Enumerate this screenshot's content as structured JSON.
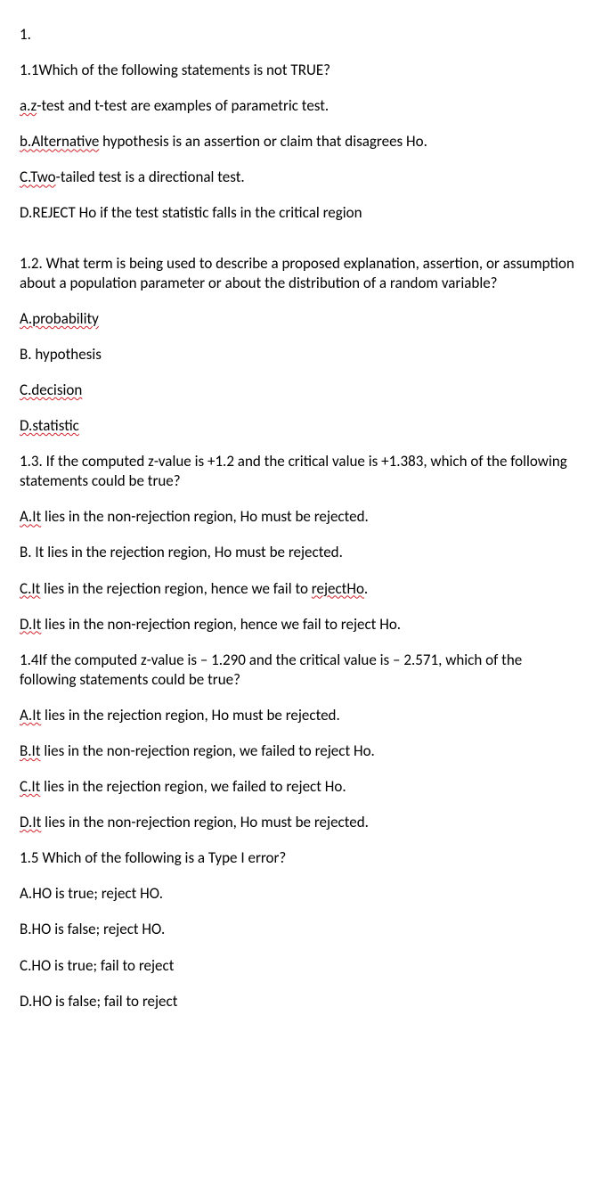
{
  "doc": {
    "font_family": "Calibri",
    "font_size_pt": 12,
    "text_color": "#000000",
    "background": "#ffffff",
    "spell_underline_color": "#d1232a",
    "heading": "1.",
    "q1": {
      "stem_a": "1.1Which of the following statements is not TRUE?",
      "a_pre": "a.z",
      "a_rest": "-test and t-test are examples of parametric test.",
      "b_pre": "b.Alternative",
      "b_rest": " hypothesis is an assertion or claim that disagrees Ho.",
      "c_pre": "C.Two",
      "c_rest": "-tailed test is a directional test.",
      "d": "D.REJECT Ho if the test statistic falls in the critical region"
    },
    "q2": {
      "stem": "1.2. What term is being used to describe a proposed explanation, assertion, or assumption about a population parameter or about the distribution of a random variable?",
      "a": "A.probability",
      "b": "B. hypothesis",
      "c": "C.decision",
      "d": "D.statistic"
    },
    "q3": {
      "stem": "1.3. If the computed z-value is +1.2 and the critical value is +1.383, which of the following statements could be true?",
      "a_pre": "A.It",
      "a_rest": " lies in the non-rejection region, Ho must be rejected.",
      "b": "B. It lies in the rejection region, Ho must be rejected.",
      "c_pre": "C.It",
      "c_rest_a": " lies in the rejection region, hence we fail to ",
      "c_mid": "rejectHo",
      "c_rest_b": ".",
      "d_pre": "D.It",
      "d_rest": " lies in the non-rejection region, hence we fail to reject Ho."
    },
    "q4": {
      "stem": "1.4If the computed z-value is – 1.290 and the critical value is – 2.571, which of the following statements could be true?",
      "a_pre": "A.It",
      "a_rest": " lies in the rejection region, Ho must be rejected.",
      "b_pre": "B.It",
      "b_rest": " lies in the non-rejection region, we failed to reject Ho.",
      "c_pre": "C.It",
      "c_rest": " lies in the rejection region, we failed to reject Ho.",
      "d_pre": "D.It",
      "d_rest": " lies in the non-rejection region, Ho must be rejected."
    },
    "q5": {
      "stem": "1.5 Which of the following is a Type I error?",
      "a": "A.HO is true; reject HO.",
      "b": "B.HO is false; reject HO.",
      "c": "C.HO is true; fail to reject",
      "d": "D.HO is false; fail to reject"
    }
  }
}
